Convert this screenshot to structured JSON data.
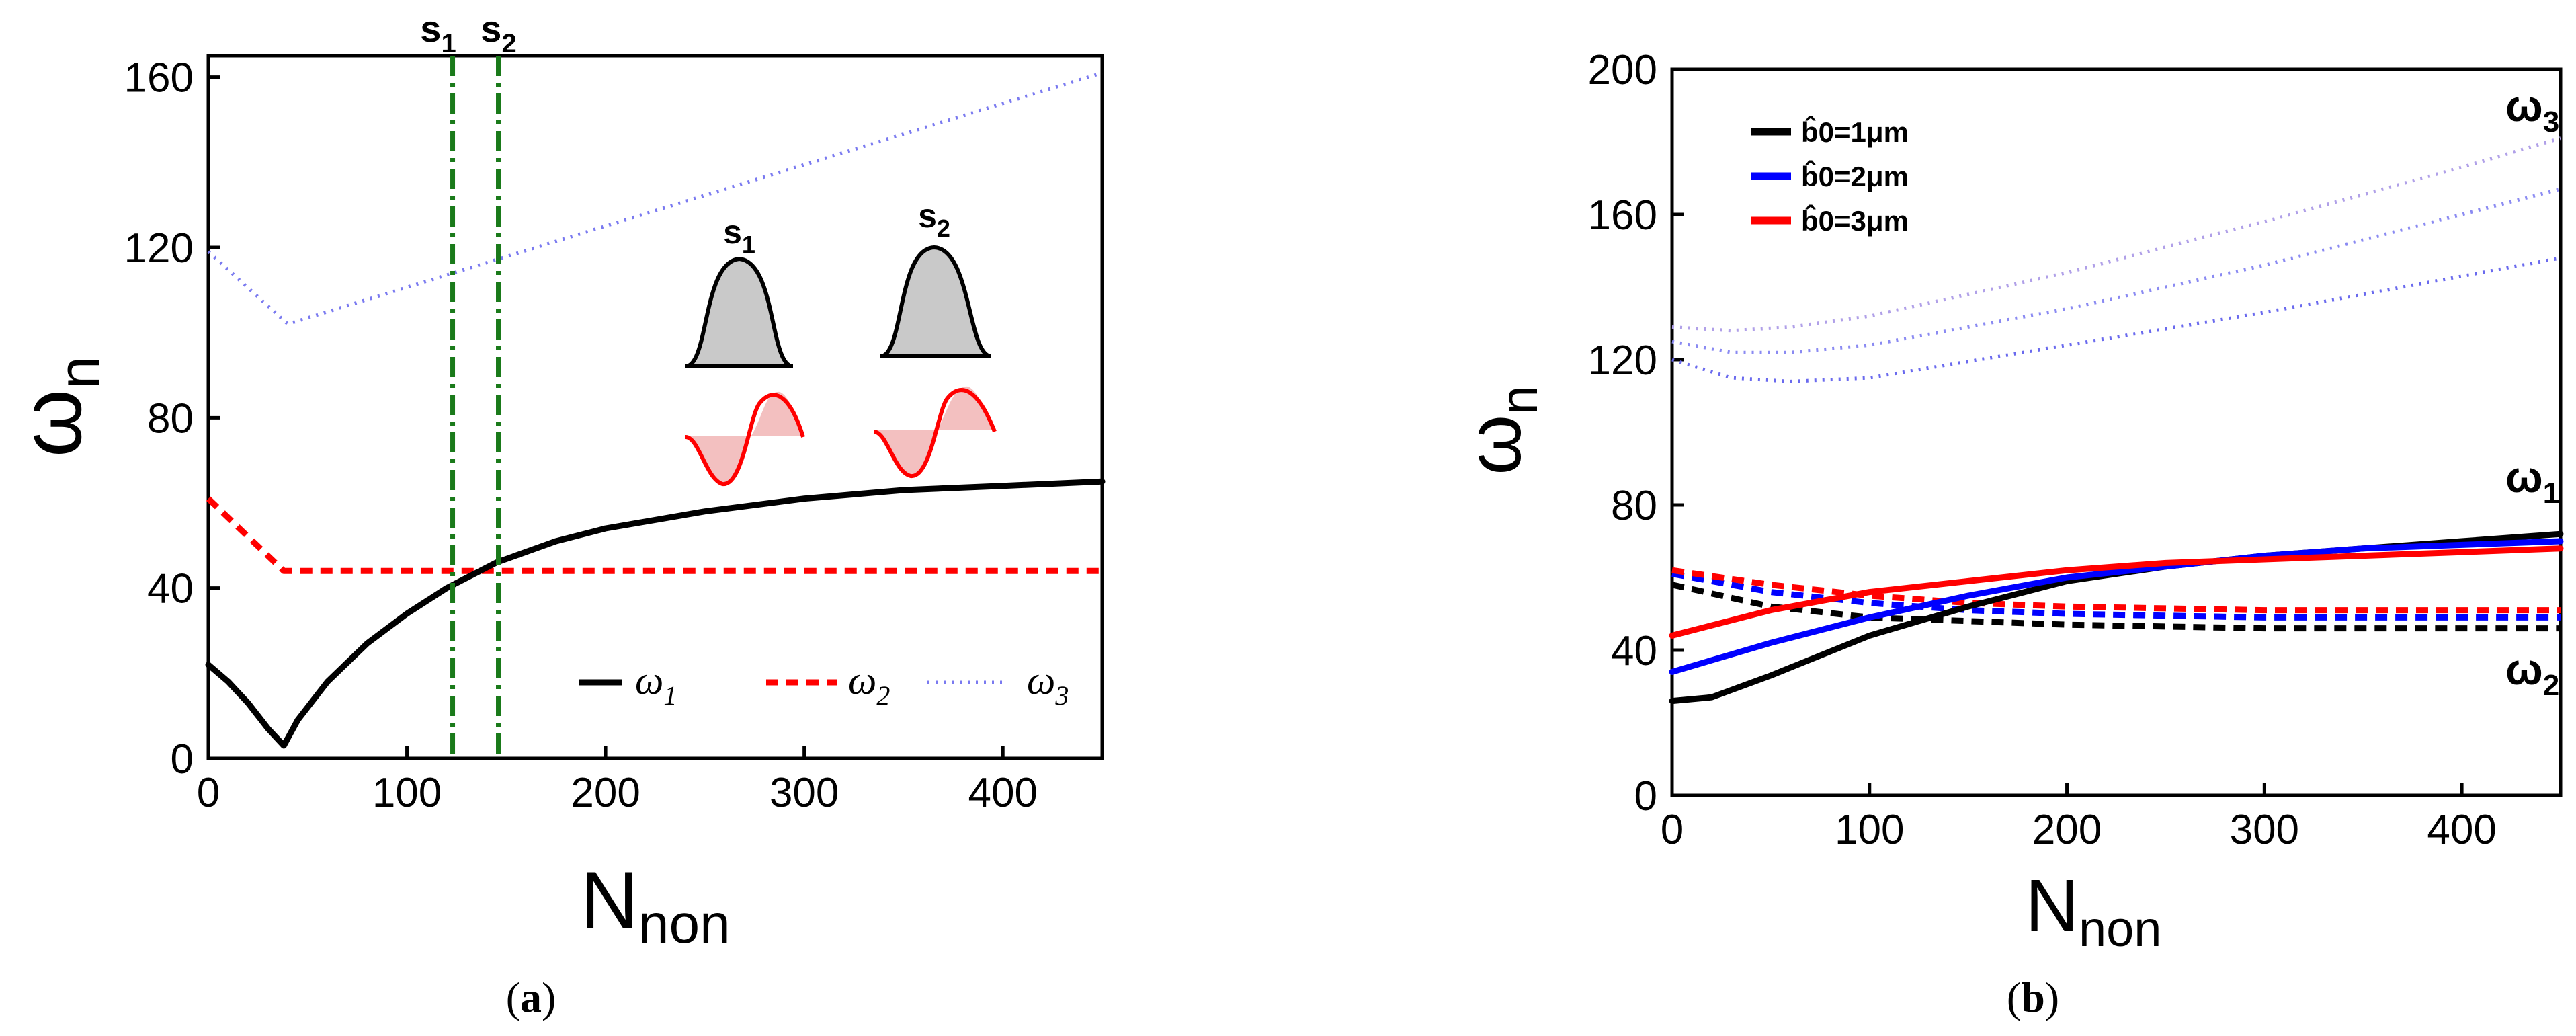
{
  "chart_data": [
    {
      "type": "line",
      "panel": "a",
      "caption": "(a)",
      "caption_letter": "a",
      "xlabel": "N",
      "xlabel_sub": "non",
      "ylabel": "ω",
      "ylabel_sub": "n",
      "xlim": [
        0,
        450
      ],
      "ylim": [
        0,
        165
      ],
      "xticks": [
        0,
        100,
        200,
        300,
        400
      ],
      "yticks": [
        0,
        40,
        80,
        120,
        160
      ],
      "series": [
        {
          "name": "ω1",
          "legend_main": "ω",
          "legend_sub": "1",
          "color": "#000000",
          "style": "solid",
          "x": [
            0,
            10,
            20,
            30,
            38,
            45,
            60,
            80,
            100,
            120,
            145,
            175,
            200,
            250,
            300,
            350,
            400,
            450
          ],
          "y": [
            22,
            18,
            13,
            7,
            3,
            9,
            18,
            27,
            34,
            40,
            46,
            51,
            54,
            58,
            61,
            63,
            64,
            65
          ]
        },
        {
          "name": "ω2",
          "legend_main": "ω",
          "legend_sub": "2",
          "color": "#ff0000",
          "style": "dashed",
          "x": [
            0,
            38,
            450
          ],
          "y": [
            61,
            44,
            44
          ]
        },
        {
          "name": "ω3",
          "legend_main": "ω",
          "legend_sub": "3",
          "color": "#7a7af0",
          "style": "dotted",
          "x": [
            0,
            40,
            450
          ],
          "y": [
            119,
            102,
            161
          ]
        }
      ],
      "vlines": [
        {
          "name": "s1",
          "label": "s",
          "sub": "1",
          "x": 123,
          "color": "#1a7a1a"
        },
        {
          "name": "s2",
          "label": "s",
          "sub": "2",
          "x": 146,
          "color": "#1a7a1a"
        }
      ],
      "insets": [
        {
          "label": "s",
          "sub": "1"
        },
        {
          "label": "s",
          "sub": "2"
        }
      ]
    },
    {
      "type": "line",
      "panel": "b",
      "caption": "(b)",
      "caption_letter": "b",
      "xlabel": "N",
      "xlabel_sub": "non",
      "ylabel": "ω",
      "ylabel_sub": "n",
      "xlim": [
        0,
        450
      ],
      "ylim": [
        0,
        200
      ],
      "xticks": [
        0,
        100,
        200,
        300,
        400
      ],
      "yticks": [
        0,
        40,
        80,
        120,
        160,
        200
      ],
      "legend": [
        {
          "text": "b̂0=1μm",
          "color": "#000000"
        },
        {
          "text": "b̂0=2μm",
          "color": "#0000ff"
        },
        {
          "text": "b̂0=3μm",
          "color": "#ff0000"
        }
      ],
      "mode_labels": [
        {
          "main": "ω",
          "sub": "3",
          "x": 450,
          "y": 185
        },
        {
          "main": "ω",
          "sub": "1",
          "x": 450,
          "y": 80
        },
        {
          "main": "ω",
          "sub": "2",
          "x": 450,
          "y": 25
        }
      ],
      "series": [
        {
          "name": "ω1 b0=1μm",
          "color": "#000000",
          "style": "solid",
          "x": [
            0,
            20,
            50,
            100,
            150,
            200,
            250,
            300,
            350,
            400,
            450
          ],
          "y": [
            26,
            27,
            33,
            44,
            52,
            59,
            63,
            66,
            68,
            70,
            72
          ]
        },
        {
          "name": "ω1 b0=2μm",
          "color": "#0000ff",
          "style": "solid",
          "x": [
            0,
            50,
            100,
            150,
            200,
            250,
            300,
            350,
            400,
            450
          ],
          "y": [
            34,
            42,
            49,
            55,
            60,
            63,
            66,
            68,
            69,
            70
          ]
        },
        {
          "name": "ω1 b0=3μm",
          "color": "#ff0000",
          "style": "solid",
          "x": [
            0,
            50,
            100,
            150,
            200,
            250,
            300,
            350,
            400,
            450
          ],
          "y": [
            44,
            51,
            56,
            59,
            62,
            64,
            65,
            66,
            67,
            68
          ]
        },
        {
          "name": "ω2 b0=1μm",
          "color": "#000000",
          "style": "dashed",
          "x": [
            0,
            50,
            100,
            150,
            200,
            300,
            400,
            450
          ],
          "y": [
            58,
            52,
            49,
            48,
            47,
            46,
            46,
            46
          ]
        },
        {
          "name": "ω2 b0=2μm",
          "color": "#0000ff",
          "style": "dashed",
          "x": [
            0,
            50,
            100,
            150,
            200,
            300,
            400,
            450
          ],
          "y": [
            61,
            56,
            53,
            51,
            50,
            49,
            49,
            49
          ]
        },
        {
          "name": "ω2 b0=3μm",
          "color": "#ff0000",
          "style": "dashed",
          "x": [
            0,
            50,
            100,
            150,
            200,
            300,
            400,
            450
          ],
          "y": [
            62,
            58,
            55,
            53,
            52,
            51,
            51,
            51
          ]
        },
        {
          "name": "ω3 b0=1μm",
          "color": "#6a6aee",
          "style": "dotted",
          "x": [
            0,
            30,
            60,
            100,
            200,
            300,
            400,
            450
          ],
          "y": [
            120,
            115,
            114,
            115,
            124,
            133,
            143,
            148
          ]
        },
        {
          "name": "ω3 b0=2μm",
          "color": "#8a8af2",
          "style": "dotted",
          "x": [
            0,
            30,
            60,
            100,
            200,
            300,
            400,
            450
          ],
          "y": [
            125,
            122,
            122,
            124,
            134,
            146,
            160,
            167
          ]
        },
        {
          "name": "ω3 b0=3μm",
          "color": "#b0a0e8",
          "style": "dotted",
          "x": [
            0,
            30,
            60,
            100,
            200,
            300,
            400,
            450
          ],
          "y": [
            129,
            128,
            129,
            132,
            144,
            158,
            173,
            181
          ]
        }
      ]
    }
  ]
}
